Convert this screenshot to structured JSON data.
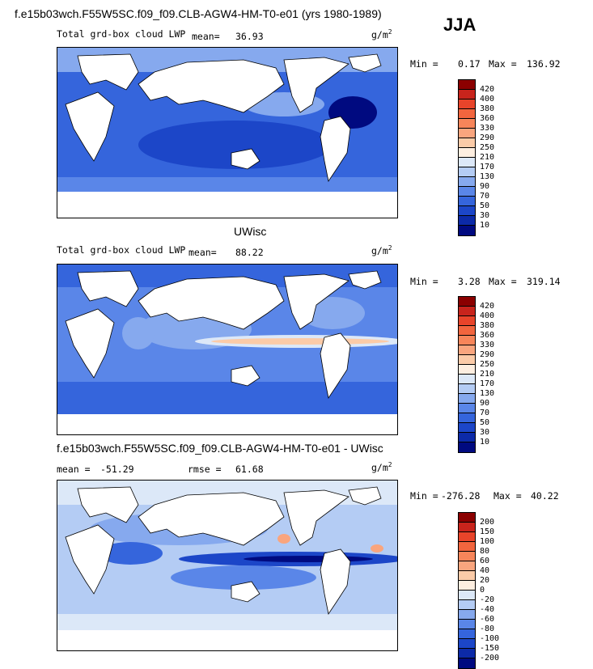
{
  "main_title": "f.e15b03wch.F55W5SC.f09_f09.CLB-AGW4-HM-T0-e01 (yrs 1980-1989)",
  "season": "JJA",
  "panels": [
    {
      "heading": "",
      "field_label": "Total grd-box cloud LWP",
      "stat_label": "mean=",
      "stat_value": "36.93",
      "stat2_label": "",
      "stat2_value": "",
      "units": "g/m",
      "units_sup": "2",
      "min_label": "Min =",
      "min_value": "0.17",
      "max_label": "Max =",
      "max_value": "136.92",
      "levels": [
        "420",
        "400",
        "380",
        "360",
        "330",
        "290",
        "250",
        "210",
        "170",
        "130",
        "90",
        "70",
        "50",
        "30",
        "10"
      ],
      "colors": [
        "#8b0000",
        "#c8241c",
        "#e8442a",
        "#f2653e",
        "#f7855a",
        "#f9a57e",
        "#fbcba8",
        "#fdeee0",
        "#dce8f8",
        "#b4ccf4",
        "#86a9ee",
        "#5a86e8",
        "#3565dc",
        "#1c46c8",
        "#0c2aa8",
        "#000a80"
      ]
    },
    {
      "heading": "UWisc",
      "field_label": "Total grd-box cloud LWP",
      "stat_label": "mean=",
      "stat_value": "88.22",
      "stat2_label": "",
      "stat2_value": "",
      "units": "g/m",
      "units_sup": "2",
      "min_label": "Min =",
      "min_value": "3.28",
      "max_label": "Max =",
      "max_value": "319.14",
      "levels": [
        "420",
        "400",
        "380",
        "360",
        "330",
        "290",
        "250",
        "210",
        "170",
        "130",
        "90",
        "70",
        "50",
        "30",
        "10"
      ],
      "colors": [
        "#8b0000",
        "#c8241c",
        "#e8442a",
        "#f2653e",
        "#f7855a",
        "#f9a57e",
        "#fbcba8",
        "#fdeee0",
        "#dce8f8",
        "#b4ccf4",
        "#86a9ee",
        "#5a86e8",
        "#3565dc",
        "#1c46c8",
        "#0c2aa8",
        "#000a80"
      ]
    },
    {
      "heading": "f.e15b03wch.F55W5SC.f09_f09.CLB-AGW4-HM-T0-e01 - UWisc",
      "field_label": "",
      "stat_label": "mean =",
      "stat_value": "-51.29",
      "stat2_label": "rmse =",
      "stat2_value": "61.68",
      "units": "g/m",
      "units_sup": "2",
      "min_label": "Min =",
      "min_value": "-276.28",
      "max_label": "Max =",
      "max_value": "40.22",
      "levels": [
        "200",
        "150",
        "100",
        "80",
        "60",
        "40",
        "20",
        "0",
        "-20",
        "-40",
        "-60",
        "-80",
        "-100",
        "-150",
        "-200"
      ],
      "colors": [
        "#8b0000",
        "#c8241c",
        "#e8442a",
        "#f2653e",
        "#f7855a",
        "#f9a57e",
        "#fbcba8",
        "#fdeee0",
        "#dce8f8",
        "#b4ccf4",
        "#86a9ee",
        "#5a86e8",
        "#3565dc",
        "#1c46c8",
        "#0c2aa8",
        "#000a80"
      ]
    }
  ]
}
